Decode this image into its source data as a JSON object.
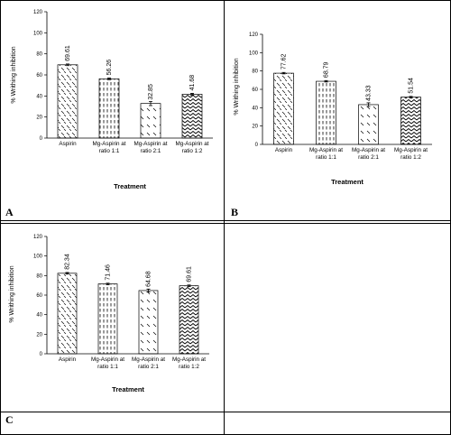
{
  "panels": [
    {
      "letter": "A",
      "chart_data": {
        "type": "bar",
        "categories": [
          "Aspirin",
          "Mg-Aspirin at ratio 1:1",
          "Mg-Aspirin at ratio 2:1",
          "Mg-Aspirin at ratio 1:2"
        ],
        "values": [
          69.61,
          56.26,
          32.85,
          41.68
        ],
        "data_labels": [
          "69.61",
          "56.26",
          "32.85",
          "41.68"
        ],
        "errors": [
          0.8,
          0.8,
          2.0,
          0.8
        ],
        "xlabel": "Treatment",
        "ylabel": "% Writhing inhibition",
        "ylim": [
          0,
          120
        ],
        "yticks": [
          0,
          20,
          40,
          60,
          80,
          100,
          120
        ],
        "grid": false
      }
    },
    {
      "letter": "B",
      "chart_data": {
        "type": "bar",
        "categories": [
          "Aspirin",
          "Mg-Aspirin at ratio 1:1",
          "Mg-Aspirin at ratio 2:1",
          "Mg-Aspirin at ratio 1:2"
        ],
        "values": [
          77.62,
          68.79,
          43.33,
          51.54
        ],
        "data_labels": [
          "77.62",
          "68.79",
          "43.33",
          "51.54"
        ],
        "errors": [
          0.8,
          0.8,
          2.0,
          0.8
        ],
        "xlabel": "Treatment",
        "ylabel": "% Writhing inhibition",
        "ylim": [
          0,
          120
        ],
        "yticks": [
          0,
          20,
          40,
          60,
          80,
          100,
          120
        ],
        "grid": false
      }
    },
    {
      "letter": "C",
      "chart_data": {
        "type": "bar",
        "categories": [
          "Aspirin",
          "Mg-Aspirin at ratio 1:1",
          "Mg-Aspirin at ratio 2:1",
          "Mg-Aspirin at ratio 1:2"
        ],
        "values": [
          82.34,
          71.46,
          64.68,
          69.61
        ],
        "data_labels": [
          "82.34",
          "71.46",
          "64.68",
          "69.61"
        ],
        "errors": [
          0.8,
          0.8,
          1.5,
          0.8
        ],
        "xlabel": "Treatment",
        "ylabel": "% Writhing inhibition",
        "ylim": [
          0,
          120
        ],
        "yticks": [
          0,
          20,
          40,
          60,
          80,
          100,
          120
        ],
        "grid": false
      }
    }
  ],
  "bar_patterns": [
    "diag-dash",
    "vert-dash",
    "diag-dash-sparse",
    "zigzag"
  ]
}
